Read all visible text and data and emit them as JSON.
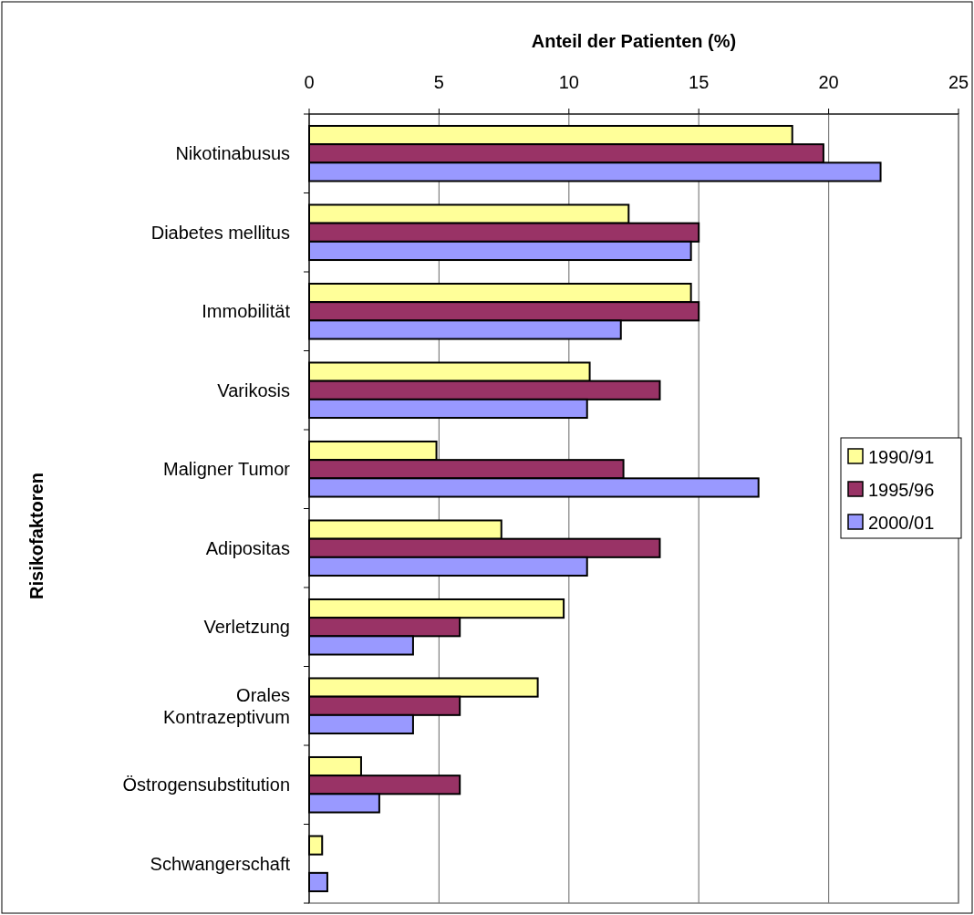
{
  "chart_data": {
    "type": "bar",
    "orientation": "horizontal",
    "xlabel": "Anteil der Patienten (%)",
    "ylabel": "Risikofaktoren",
    "categories": [
      "Nikotinabusus",
      "Diabetes mellitus",
      "Immobilität",
      "Varikosis",
      "Maligner Tumor",
      "Adipositas",
      "Verletzung",
      "Orales Kontrazeptivum",
      "Östrogensubstitution",
      "Schwangerschaft"
    ],
    "series": [
      {
        "name": "1990/91",
        "color": "#ffff99",
        "values": [
          18.6,
          12.3,
          14.7,
          10.8,
          4.9,
          7.4,
          9.8,
          8.8,
          2.0,
          0.5
        ]
      },
      {
        "name": "1995/96",
        "color": "#993366",
        "values": [
          19.8,
          15.0,
          15.0,
          13.5,
          12.1,
          13.5,
          5.8,
          5.8,
          5.8,
          null
        ]
      },
      {
        "name": "2000/01",
        "color": "#9999ff",
        "values": [
          22.0,
          14.7,
          12.0,
          10.7,
          17.3,
          10.7,
          4.0,
          4.0,
          2.7,
          0.7
        ]
      }
    ],
    "xlim": [
      0,
      25
    ],
    "xticks": [
      0,
      5,
      10,
      15,
      20,
      25
    ],
    "grid": "x",
    "legend": "right"
  }
}
